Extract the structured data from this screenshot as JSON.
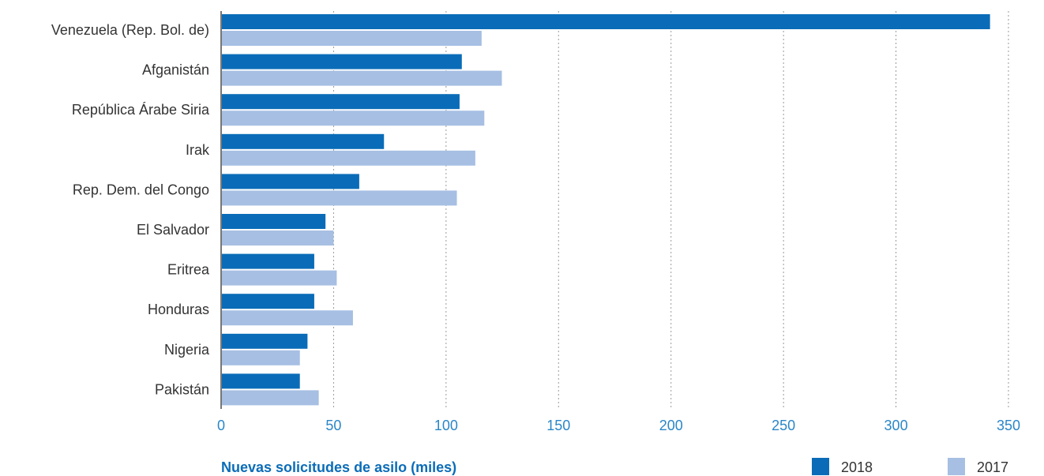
{
  "chart_data": {
    "type": "bar",
    "orientation": "horizontal",
    "xlabel": "Nuevas solicitudes de asilo (miles)",
    "xlim": [
      0,
      350
    ],
    "xticks": [
      0,
      50,
      100,
      150,
      200,
      250,
      300,
      350
    ],
    "grid": "vertical-dotted",
    "legend_position": "bottom-right",
    "categories": [
      "Venezuela (Rep. Bol. de)",
      "Afganistán",
      "República Árabe Siria",
      "Irak",
      "Rep. Dem. del Congo",
      "El Salvador",
      "Eritrea",
      "Honduras",
      "Nigeria",
      "Pakistán"
    ],
    "series": [
      {
        "name": "2018",
        "color": "#0a6cb8",
        "values": [
          341.8,
          107,
          106,
          72.4,
          61.4,
          46.4,
          41.4,
          41.4,
          38.4,
          35
        ]
      },
      {
        "name": "2017",
        "color": "#a6bfe3",
        "values": [
          115.8,
          124.8,
          117,
          113,
          104.8,
          50,
          51.4,
          58.6,
          35,
          43.4
        ]
      }
    ]
  }
}
